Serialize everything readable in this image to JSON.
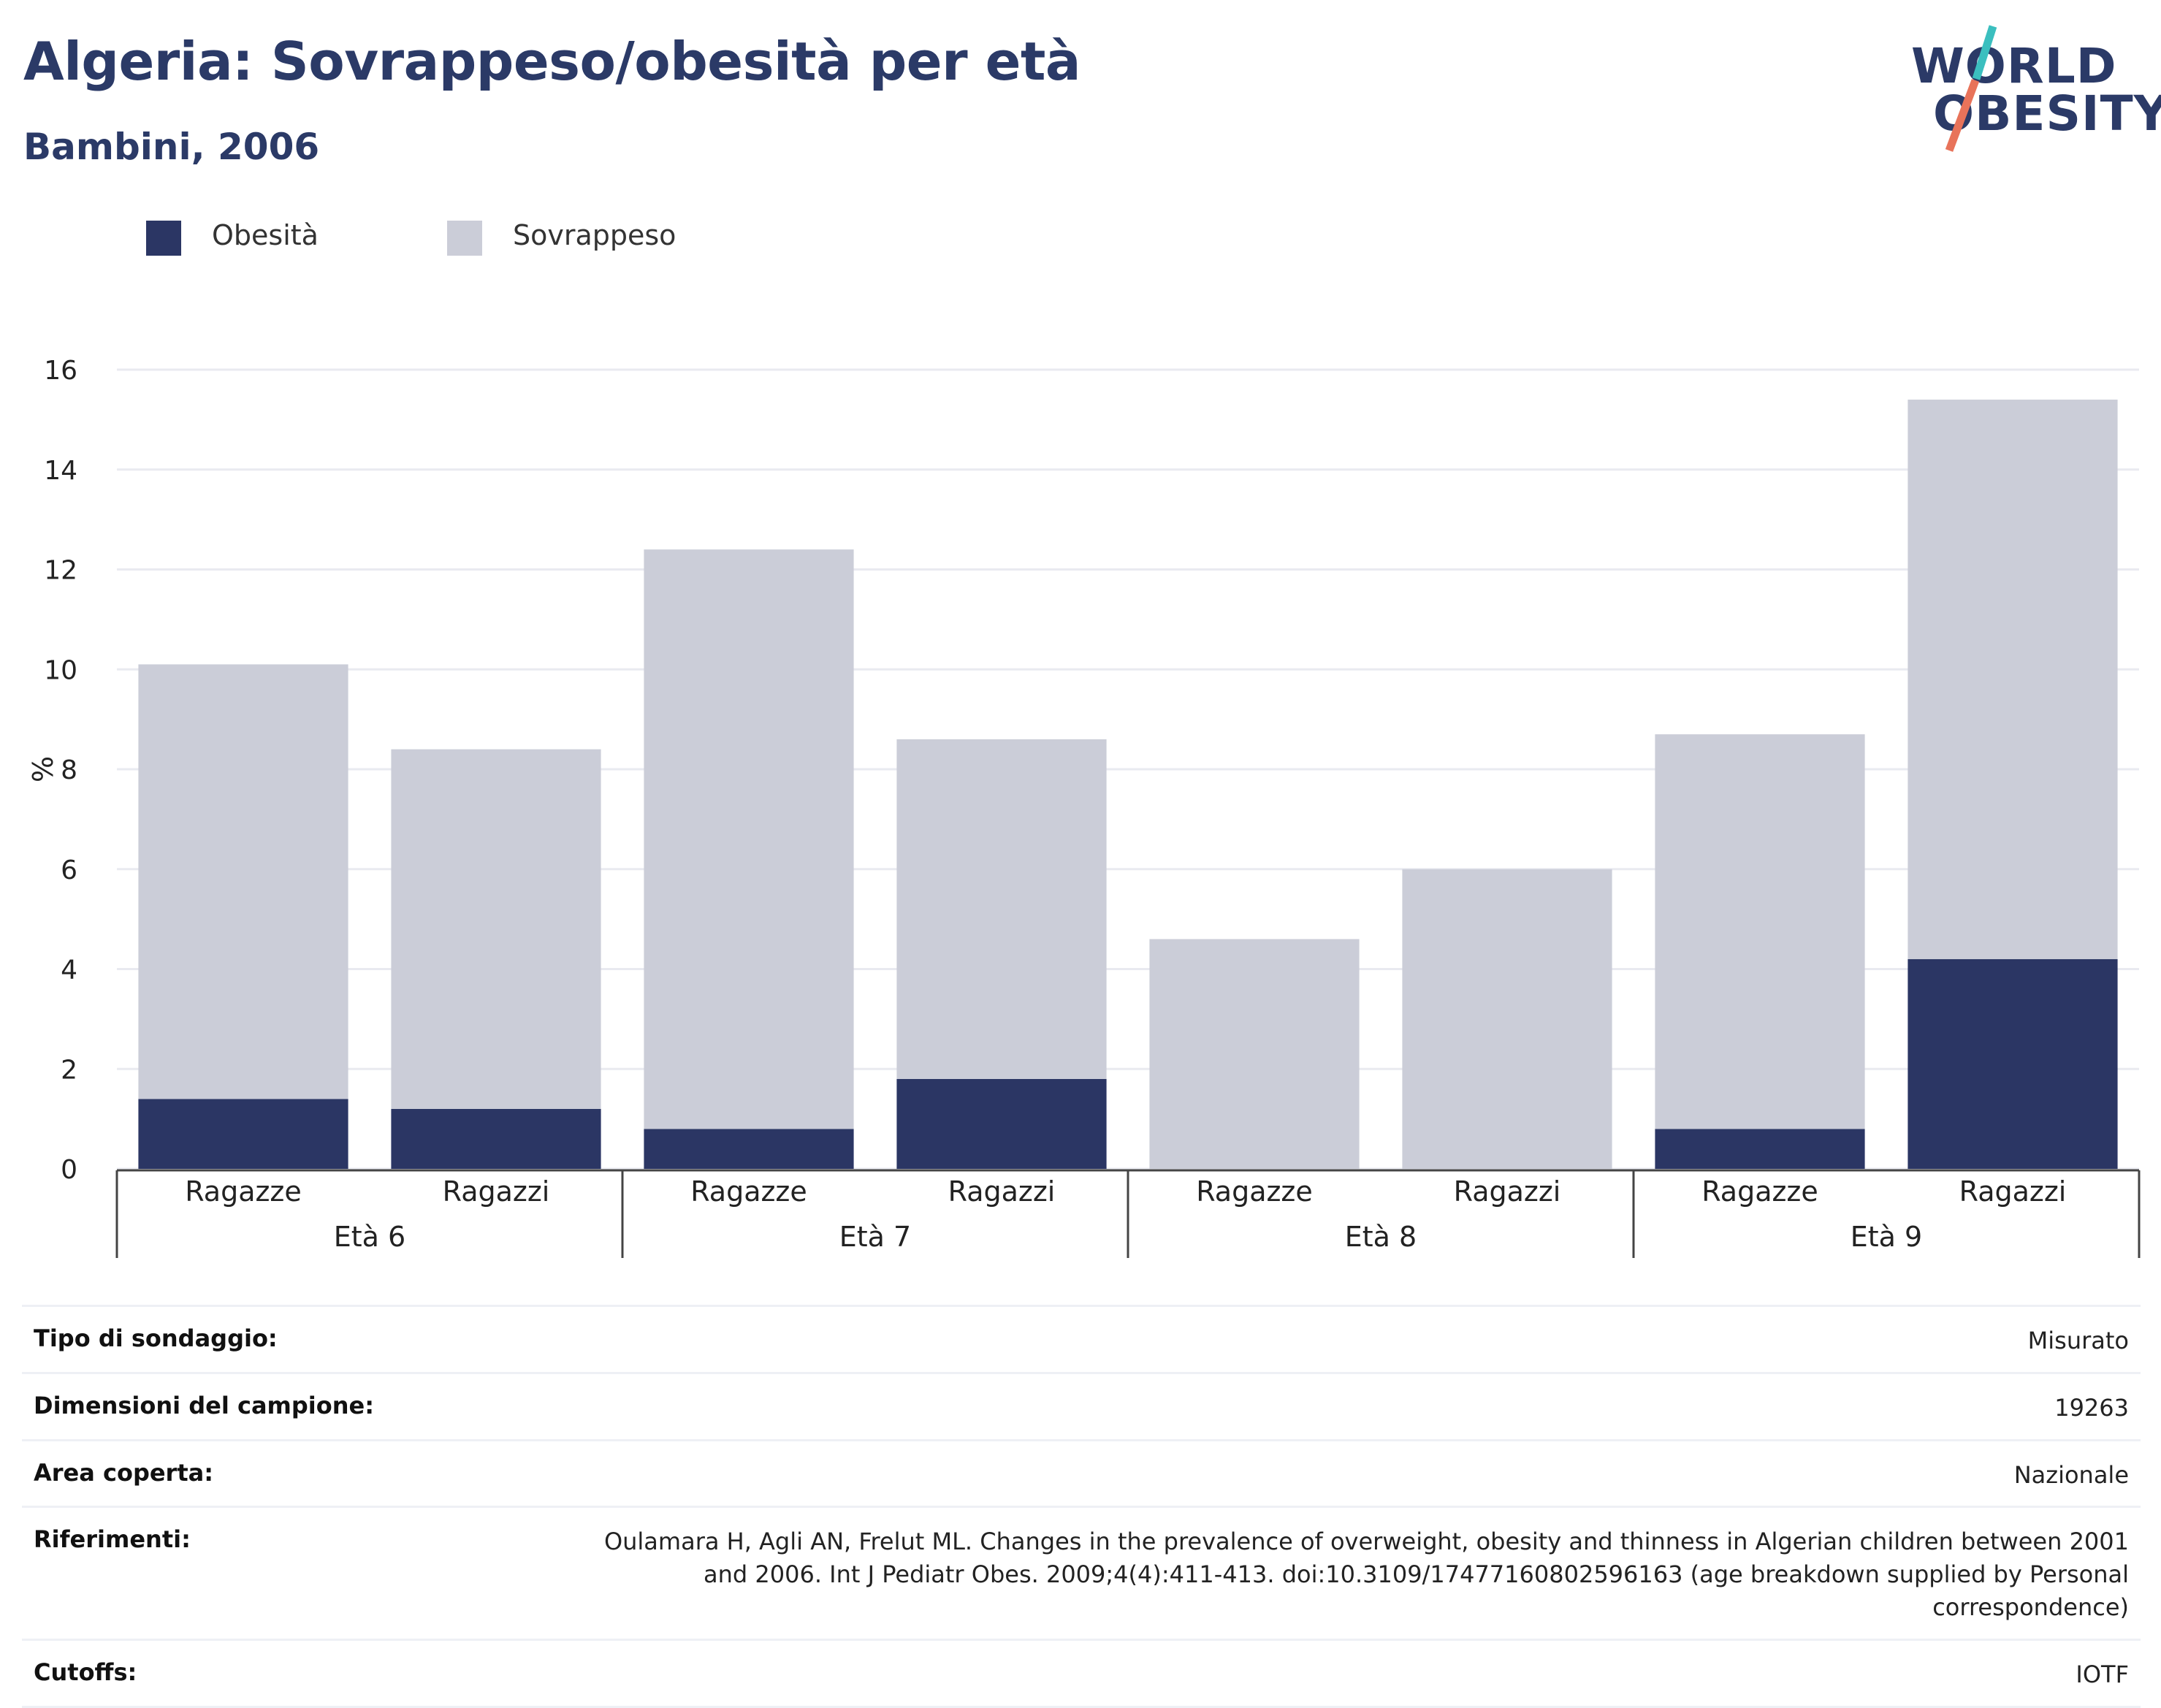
{
  "header": {
    "title": "Algeria: Sovrappeso/obesità per età",
    "subtitle": "Bambini, 2006"
  },
  "logo": {
    "line1": "WORLD",
    "line2": "OBESITY",
    "slash_colors": [
      "#3bbfbf",
      "#e8735a"
    ]
  },
  "legend": {
    "items": [
      {
        "label": "Obesità",
        "color": "#2b3664"
      },
      {
        "label": "Sovrappeso",
        "color": "#cbcdd8"
      }
    ]
  },
  "chart_data": {
    "type": "bar",
    "stacked": true,
    "ylabel": "%",
    "ylim": [
      0,
      16
    ],
    "yticks": [
      0,
      2,
      4,
      6,
      8,
      10,
      12,
      14,
      16
    ],
    "grid": true,
    "legend_position": "top-left",
    "groups": [
      "Età 6",
      "Età 7",
      "Età 8",
      "Età 9"
    ],
    "categories": [
      "Ragazze",
      "Ragazzi",
      "Ragazze",
      "Ragazzi",
      "Ragazze",
      "Ragazzi",
      "Ragazze",
      "Ragazzi"
    ],
    "series": [
      {
        "name": "Obesità",
        "color": "#2b3664",
        "values": [
          1.4,
          1.2,
          0.8,
          1.8,
          0,
          0,
          0.8,
          4.2
        ]
      },
      {
        "name": "Sovrappeso",
        "color": "#cbcdd8",
        "values": [
          8.7,
          7.2,
          11.6,
          6.8,
          4.6,
          6.0,
          7.9,
          11.2
        ]
      }
    ]
  },
  "info": {
    "rows": [
      {
        "label": "Tipo di sondaggio:",
        "value": "Misurato"
      },
      {
        "label": "Dimensioni del campione:",
        "value": "19263"
      },
      {
        "label": "Area coperta:",
        "value": "Nazionale"
      },
      {
        "label": "Riferimenti:",
        "value": "Oulamara H, Agli AN, Frelut ML. Changes in the prevalence of overweight, obesity and thinness in Algerian children between 2001 and 2006. Int J Pediatr Obes. 2009;4(4):411-413. doi:10.3109/17477160802596163 (age breakdown supplied by Personal correspondence)"
      },
      {
        "label": "Cutoffs:",
        "value": "IOTF"
      }
    ]
  }
}
